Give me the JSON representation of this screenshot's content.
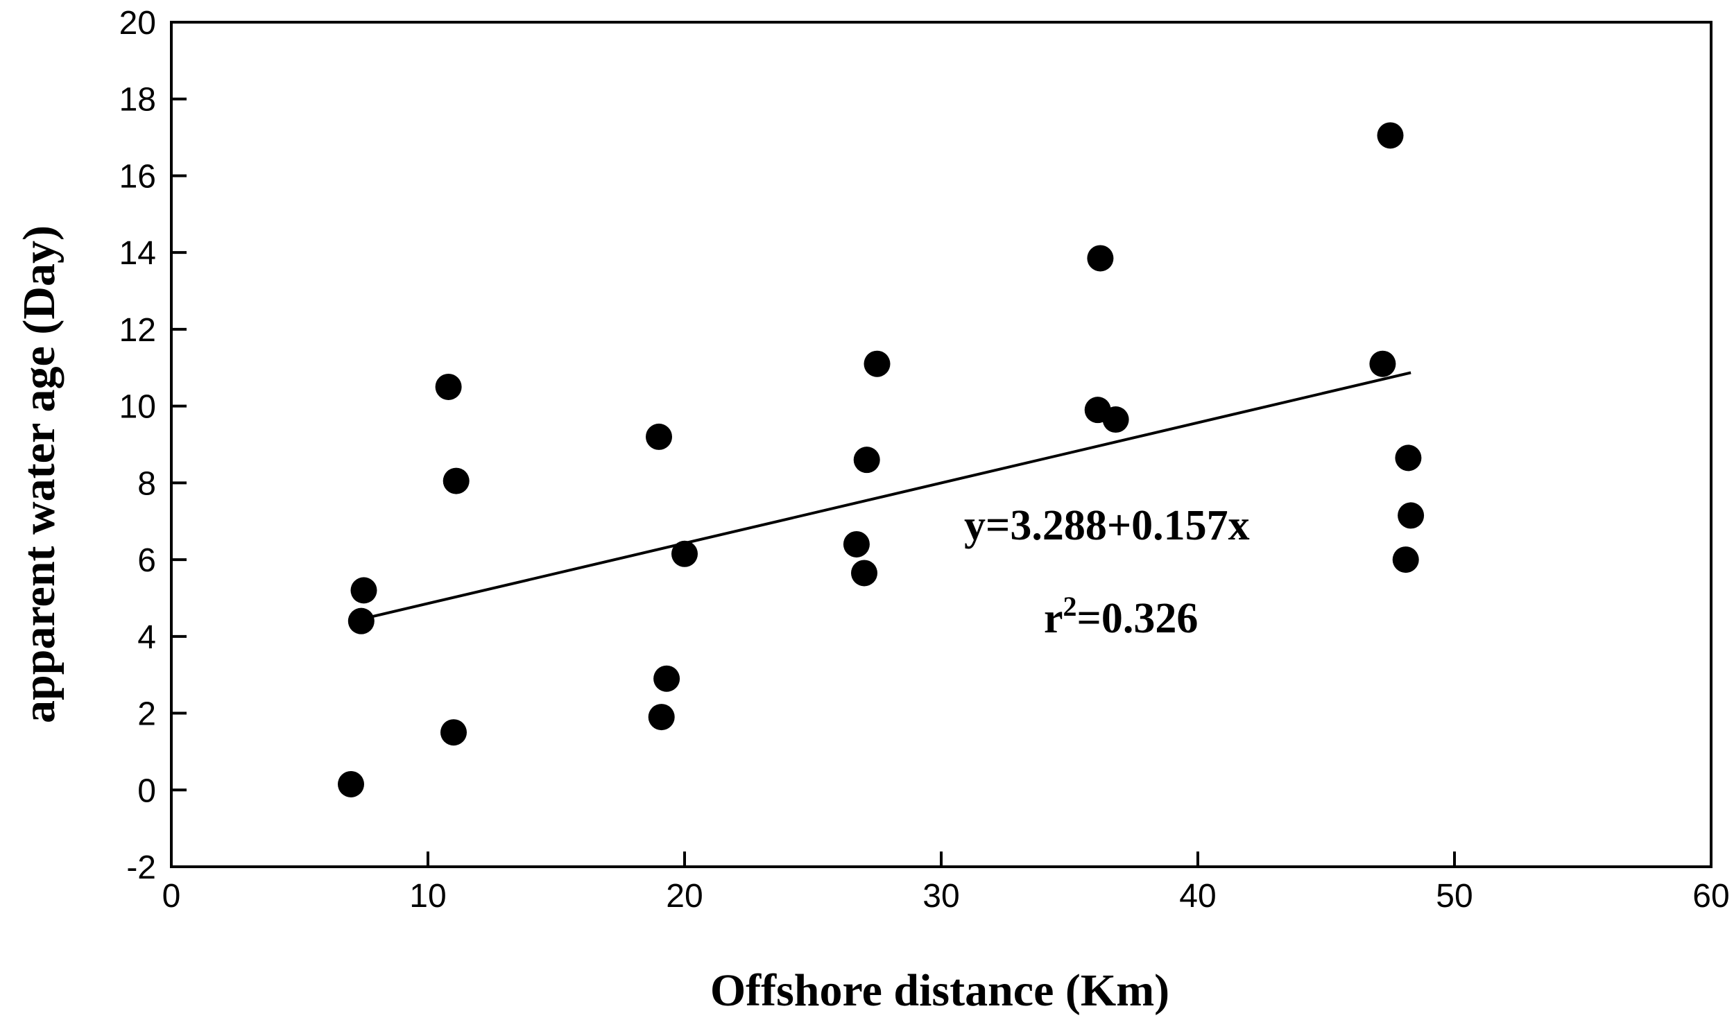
{
  "chart_data": {
    "type": "scatter",
    "title": "",
    "xlabel": "Offshore distance (Km)",
    "ylabel": "apparent water age (Day)",
    "xlim": [
      0,
      60
    ],
    "ylim": [
      -2,
      20
    ],
    "xticks": [
      0,
      10,
      20,
      30,
      40,
      50,
      60
    ],
    "yticks": [
      -2,
      0,
      2,
      4,
      6,
      8,
      10,
      12,
      14,
      16,
      18,
      20
    ],
    "grid": false,
    "legend": "none",
    "series": [
      {
        "points": [
          {
            "x": 7.0,
            "y": 0.15
          },
          {
            "x": 7.4,
            "y": 4.4
          },
          {
            "x": 7.5,
            "y": 5.2
          },
          {
            "x": 10.8,
            "y": 10.5
          },
          {
            "x": 11.0,
            "y": 1.5
          },
          {
            "x": 11.1,
            "y": 8.05
          },
          {
            "x": 19.0,
            "y": 9.2
          },
          {
            "x": 19.1,
            "y": 1.9
          },
          {
            "x": 19.3,
            "y": 2.9
          },
          {
            "x": 20.0,
            "y": 6.15
          },
          {
            "x": 26.7,
            "y": 6.4
          },
          {
            "x": 27.0,
            "y": 5.65
          },
          {
            "x": 27.1,
            "y": 8.6
          },
          {
            "x": 27.5,
            "y": 11.1
          },
          {
            "x": 36.1,
            "y": 9.9
          },
          {
            "x": 36.2,
            "y": 13.85
          },
          {
            "x": 36.8,
            "y": 9.65
          },
          {
            "x": 47.2,
            "y": 11.1
          },
          {
            "x": 47.5,
            "y": 17.05
          },
          {
            "x": 48.1,
            "y": 6.0
          },
          {
            "x": 48.2,
            "y": 8.65
          },
          {
            "x": 48.3,
            "y": 7.15
          }
        ],
        "color": "#000000"
      }
    ],
    "fit_line": {
      "intercept": 3.288,
      "slope": 0.157,
      "x_range": [
        7.5,
        48.3
      ],
      "color": "#000000"
    },
    "annotations": {
      "equation": "y=3.288+0.157x",
      "r2_prefix": "r",
      "r2_sup": "2",
      "r2_value": "=0.326"
    }
  }
}
